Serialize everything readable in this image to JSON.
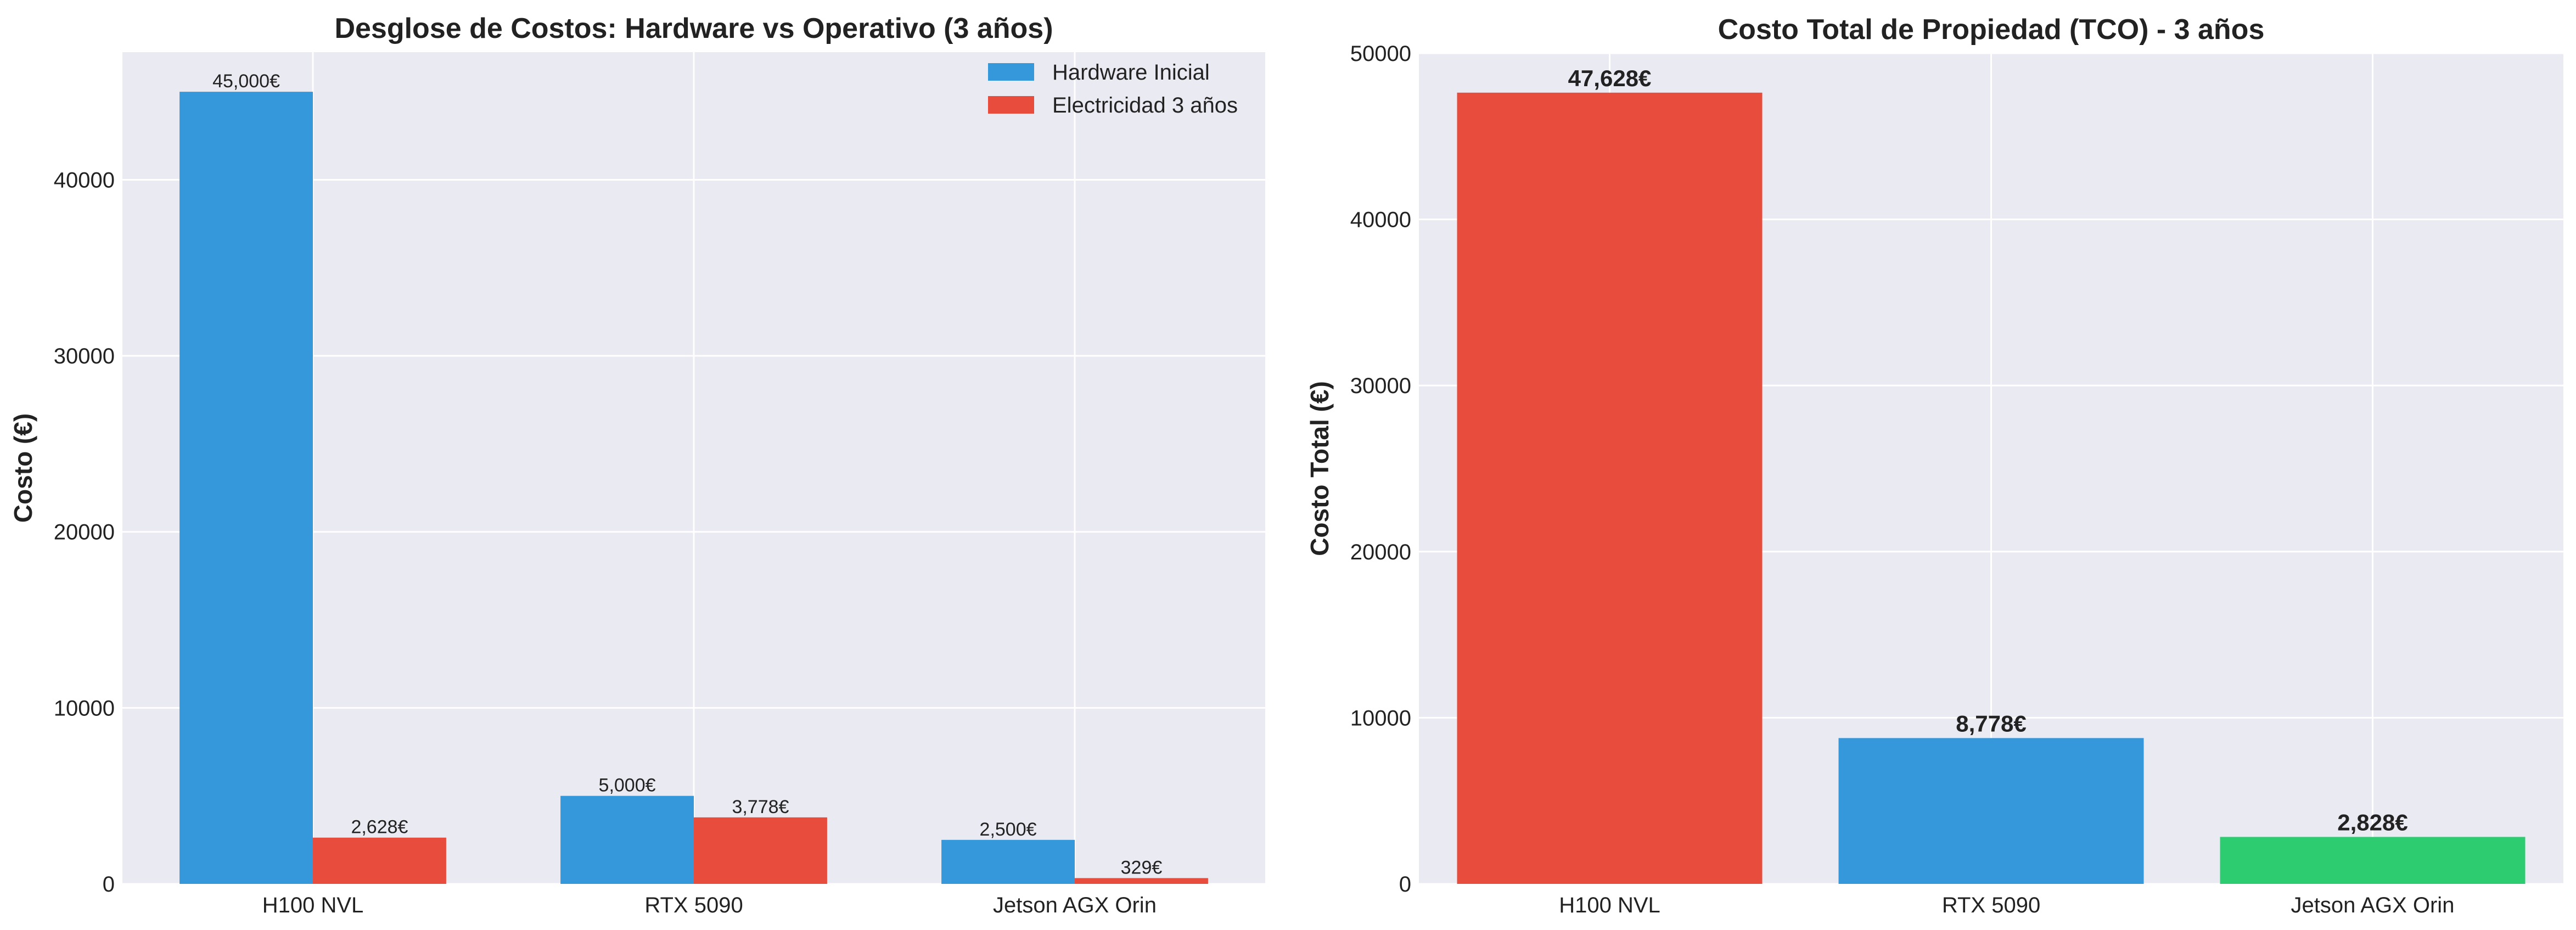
{
  "chart_data": [
    {
      "type": "bar",
      "title": "Desglose de Costos: Hardware vs Operativo (3 años)",
      "xlabel": "",
      "ylabel": "Costo (€)",
      "categories": [
        "H100 NVL",
        "RTX 5090",
        "Jetson AGX Orin"
      ],
      "series": [
        {
          "name": "Hardware Inicial",
          "color": "#3498db",
          "values": [
            45000,
            5000,
            2500
          ],
          "labels": [
            "45,000€",
            "5,000€",
            "2,500€"
          ]
        },
        {
          "name": "Electricidad 3 años",
          "color": "#e74c3c",
          "values": [
            2628,
            3778,
            329
          ],
          "labels": [
            "2,628€",
            "3,778€",
            "329€"
          ]
        }
      ],
      "ylim": [
        0,
        47250
      ],
      "yticks": [
        0,
        10000,
        20000,
        30000,
        40000
      ],
      "ytick_labels": [
        "0",
        "10000",
        "20000",
        "30000",
        "40000"
      ],
      "legend": "top-right",
      "grid": true
    },
    {
      "type": "bar",
      "title": "Costo Total de Propiedad (TCO) - 3 años",
      "xlabel": "",
      "ylabel": "Costo Total (€)",
      "categories": [
        "H100 NVL",
        "RTX 5090",
        "Jetson AGX Orin"
      ],
      "values": [
        47628,
        8778,
        2828
      ],
      "labels": [
        "47,628€",
        "8,778€",
        "2,828€"
      ],
      "colors": [
        "#e74c3c",
        "#3498db",
        "#2ecc71"
      ],
      "ylim": [
        0,
        50000
      ],
      "yticks": [
        0,
        10000,
        20000,
        30000,
        40000,
        50000
      ],
      "ytick_labels": [
        "0",
        "10000",
        "20000",
        "30000",
        "40000",
        "50000"
      ],
      "grid": true
    }
  ]
}
